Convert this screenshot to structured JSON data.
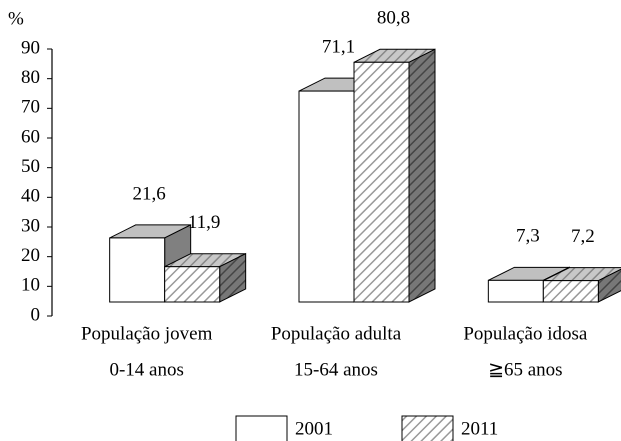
{
  "chart_data": {
    "type": "bar3d",
    "y_label": "%",
    "categories": [
      [
        "População jovem",
        "0-14 anos"
      ],
      [
        "População adulta",
        "15-64 anos"
      ],
      [
        "População idosa",
        "≧65 anos"
      ]
    ],
    "series": [
      {
        "name": "2001",
        "color": "#ffffff",
        "pattern": "none",
        "values": [
          21.6,
          71.1,
          7.3
        ],
        "value_labels": [
          "21,6",
          "71,1",
          "7,3"
        ]
      },
      {
        "name": "2011",
        "color": "#ffffff",
        "pattern": "hatch",
        "values": [
          11.9,
          80.8,
          7.2
        ],
        "value_labels": [
          "11,9",
          "80,8",
          "7,2"
        ]
      }
    ],
    "ylim": [
      0,
      90
    ],
    "yticks": [
      0,
      10,
      20,
      30,
      40,
      50,
      60,
      70,
      80,
      90
    ],
    "legend": "bottom"
  }
}
